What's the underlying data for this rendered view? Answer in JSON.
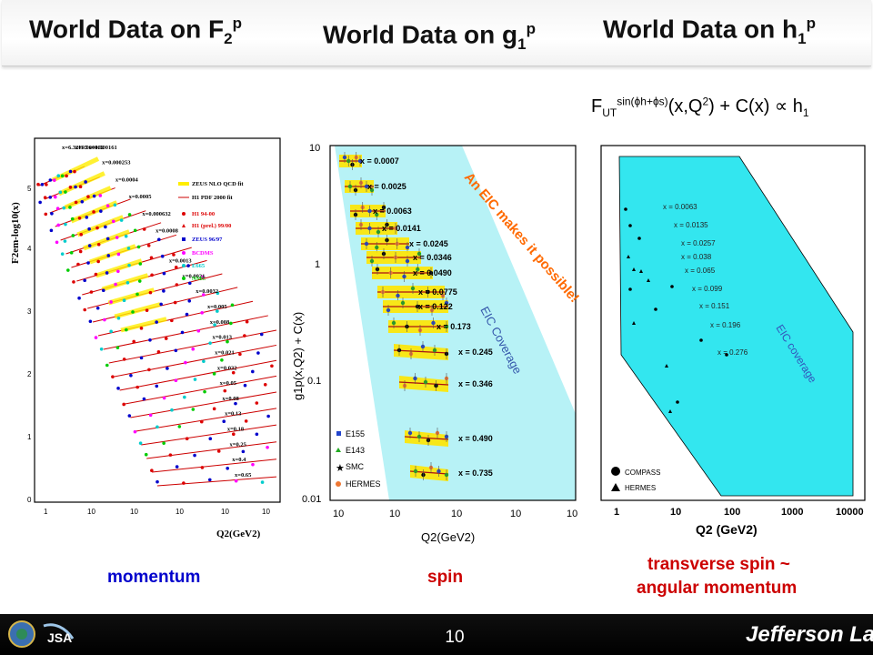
{
  "titles": {
    "f2": {
      "main": "World Data on F",
      "sub": "2",
      "sup": "p"
    },
    "g1": {
      "main": "World Data on g",
      "sub": "1",
      "sup": "p"
    },
    "h1": {
      "main": "World Data on h",
      "sub": "1",
      "sup": "p"
    }
  },
  "formula": {
    "f": "F",
    "sub": "UT",
    "sup": "sin(ϕh+ϕs)",
    "rest": "(x,Q",
    "q2sup": "2",
    "end": ") + C(x) ∝ h",
    "hsub": "1"
  },
  "left_panel": {
    "ylabel": "F2em-log10(x)",
    "xlabel": "Q2(GeV2)",
    "legend": [
      "ZEUS NLO QCD fit",
      "H1 PDF 2000 fit",
      "H1 94-00",
      "H1 (prel.) 99/00",
      "ZEUS 96/97",
      "BCDMS",
      "E665",
      "NMC"
    ],
    "xlabels": [
      "x=6.32E-5",
      "x=0.000102",
      "x=0.000161",
      "x=0.000253",
      "x=0.0004",
      "x=0.0005",
      "x=0.000632",
      "x=0.0008",
      "x=0.0013",
      "x=0.0021",
      "x=0.0032",
      "x=0.005",
      "x=0.008",
      "x=0.013",
      "x=0.021",
      "x=0.032",
      "x=0.05",
      "x=0.08",
      "x=0.13",
      "x=0.18",
      "x=0.25",
      "x=0.4",
      "x=0.65"
    ],
    "yticks": [
      "0",
      "1",
      "2",
      "3",
      "4",
      "5"
    ],
    "xticks": [
      "1",
      "10",
      "10",
      "10",
      "10",
      "10"
    ]
  },
  "middle_panel": {
    "ylabel": "g1p(x,Q2) + C(x)",
    "xlabel": "Q2(GeV2)",
    "yticks": [
      "10",
      "1",
      "0.1",
      "0.01"
    ],
    "xticks": [
      "10",
      "10",
      "10",
      "10",
      "10"
    ],
    "xlabels": [
      "x = 0.0007",
      "x = 0.0025",
      "x = 0.0063",
      "x = 0.0141",
      "x = 0.0245",
      "x = 0.0346",
      "x = 0.0490",
      "x = 0.0775",
      "x = 0.122",
      "x = 0.173",
      "x = 0.245",
      "x = 0.346",
      "x = 0.490",
      "x = 0.735"
    ],
    "coverage": "EIC Coverage",
    "legend": [
      "E155",
      "E143",
      "SMC",
      "HERMES"
    ]
  },
  "right_panel": {
    "xlabel": "Q2 (GeV2)",
    "xticks": [
      "1",
      "10",
      "100",
      "1000",
      "10000"
    ],
    "xlabels": [
      "x = 0.0063",
      "x = 0.0135",
      "x = 0.0257",
      "x = 0.038",
      "x = 0.065",
      "x = 0.099",
      "x = 0.151",
      "x = 0.196",
      "x = 0.276"
    ],
    "coverage": "EIC coverage",
    "legend": [
      "COMPASS",
      "HERMES"
    ]
  },
  "banner": "An EIC makes it possible!",
  "captions": {
    "momentum": "momentum",
    "spin": "spin",
    "transverse1": "transverse spin ~",
    "transverse2": "angular momentum"
  },
  "page_number": "10",
  "footer_logo": "Jefferson Lab",
  "colors": {
    "title": "#111111",
    "blue": "#0000cc",
    "red": "#cc0000",
    "cyan": "#33e6ef",
    "lightcyan": "#b7f2f6",
    "orange": "#ff6a00"
  }
}
